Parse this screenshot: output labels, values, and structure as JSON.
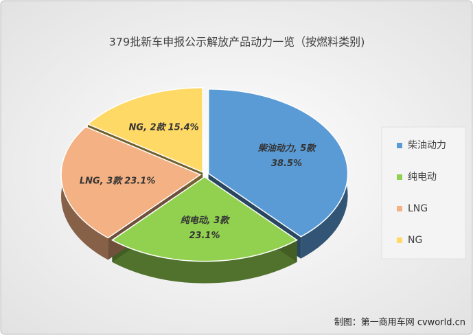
{
  "chart_data": {
    "type": "pie",
    "title": "379批新车申报公示解放产品动力一览（按燃料类别)",
    "categories": [
      "柴油动力",
      "纯电动",
      "LNG",
      "NG"
    ],
    "values": [
      5,
      3,
      3,
      2
    ],
    "value_labels": [
      "柴油动力, 5款",
      "纯电动, 3款",
      "LNG, 3款",
      "NG, 2款"
    ],
    "percents": [
      38.5,
      23.1,
      23.1,
      15.4
    ],
    "percent_labels": [
      "38.5%",
      "23.1%",
      "23.1%",
      "15.4%"
    ],
    "colors": [
      "#5b9bd5",
      "#92d050",
      "#f4b183",
      "#ffd966"
    ],
    "legend": "right",
    "source": "制图：第一商用车网 cvworld.cn"
  }
}
